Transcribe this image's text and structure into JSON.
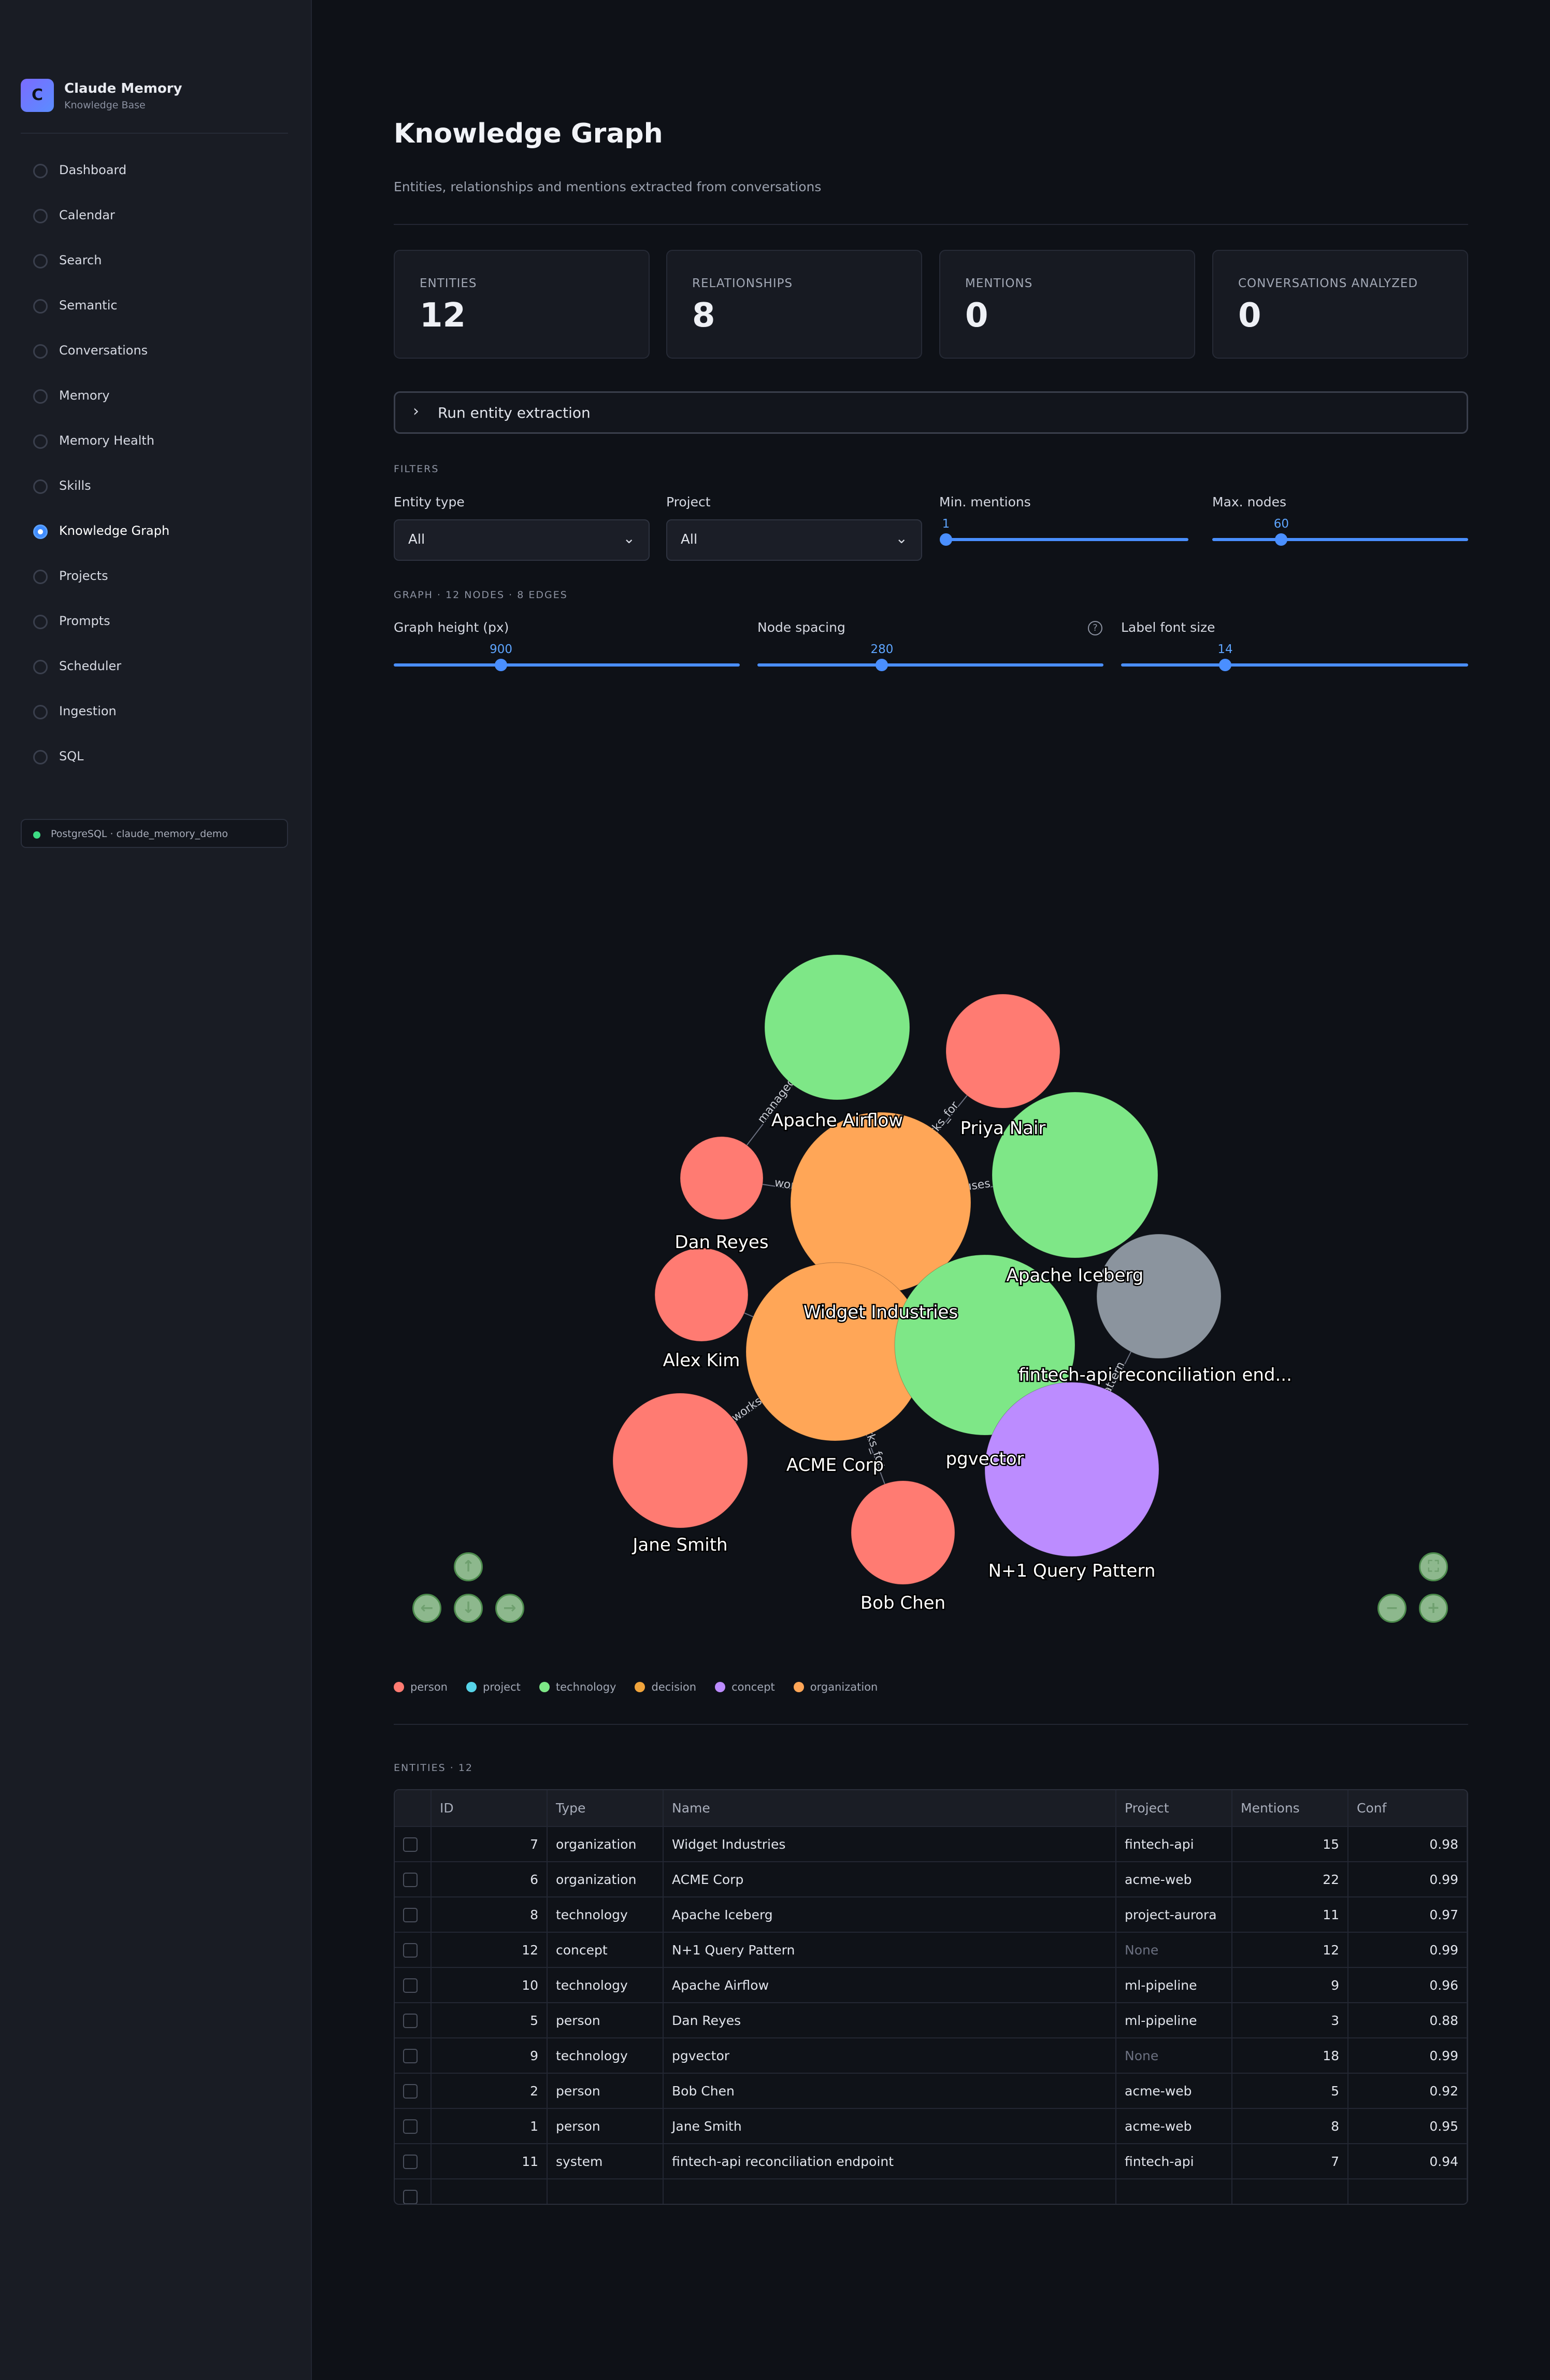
{
  "brand": {
    "logo_letter": "C",
    "title": "Claude Memory",
    "subtitle": "Knowledge Base"
  },
  "sidebar": {
    "items": [
      {
        "label": "Dashboard",
        "active": false
      },
      {
        "label": "Calendar",
        "active": false
      },
      {
        "label": "Search",
        "active": false
      },
      {
        "label": "Semantic",
        "active": false
      },
      {
        "label": "Conversations",
        "active": false
      },
      {
        "label": "Memory",
        "active": false
      },
      {
        "label": "Memory Health",
        "active": false
      },
      {
        "label": "Skills",
        "active": false
      },
      {
        "label": "Knowledge Graph",
        "active": true
      },
      {
        "label": "Projects",
        "active": false
      },
      {
        "label": "Prompts",
        "active": false
      },
      {
        "label": "Scheduler",
        "active": false
      },
      {
        "label": "Ingestion",
        "active": false
      },
      {
        "label": "SQL",
        "active": false
      }
    ],
    "db_status": "PostgreSQL · claude_memory_demo"
  },
  "page": {
    "title": "Knowledge Graph",
    "subtitle": "Entities, relationships and mentions extracted from conversations"
  },
  "stats": [
    {
      "label": "ENTITIES",
      "value": "12"
    },
    {
      "label": "RELATIONSHIPS",
      "value": "8"
    },
    {
      "label": "MENTIONS",
      "value": "0"
    },
    {
      "label": "CONVERSATIONS ANALYZED",
      "value": "0"
    }
  ],
  "extraction": {
    "label": "Run entity extraction"
  },
  "filters": {
    "caption": "FILTERS",
    "entity_type": {
      "label": "Entity type",
      "value": "All"
    },
    "project": {
      "label": "Project",
      "value": "All"
    },
    "min_mentions": {
      "label": "Min. mentions",
      "value": 1,
      "display": "1",
      "fraction": 0.0
    },
    "max_nodes": {
      "label": "Max. nodes",
      "value": 60,
      "display": "60",
      "fraction": 0.27
    }
  },
  "graph_controls": {
    "caption": "GRAPH · 12 NODES · 8 EDGES",
    "height": {
      "label": "Graph height (px)",
      "value": 900,
      "display": "900",
      "fraction": 0.31
    },
    "spacing": {
      "label": "Node spacing",
      "value": 280,
      "display": "280",
      "fraction": 0.36
    },
    "label_font": {
      "label": "Label font size",
      "value": 14,
      "display": "14",
      "fraction": 0.3
    }
  },
  "colors": {
    "person": "#ff7b72",
    "project": "#56d4e8",
    "technology": "#7ee787",
    "decision": "#f0a43c",
    "concept": "#bc8cff",
    "organization": "#ffa657",
    "system": "#8b949e",
    "accent": "#4a8fff"
  },
  "graph": {
    "nodes": [
      {
        "id": "airflow",
        "label": "Apache Airflow",
        "type": "technology"
      },
      {
        "id": "priya",
        "label": "Priya Nair",
        "type": "person"
      },
      {
        "id": "dan",
        "label": "Dan Reyes",
        "type": "person"
      },
      {
        "id": "widget",
        "label": "Widget Industries",
        "type": "organization"
      },
      {
        "id": "iceberg",
        "label": "Apache Iceberg",
        "type": "technology"
      },
      {
        "id": "alex",
        "label": "Alex Kim",
        "type": "person"
      },
      {
        "id": "fintech",
        "label": "fintech-api reconciliation end...",
        "type": "system"
      },
      {
        "id": "acme",
        "label": "ACME Corp",
        "type": "organization"
      },
      {
        "id": "pgvector",
        "label": "pgvector",
        "type": "technology"
      },
      {
        "id": "jane",
        "label": "Jane Smith",
        "type": "person"
      },
      {
        "id": "nplus1",
        "label": "N+1 Query Pattern",
        "type": "concept"
      },
      {
        "id": "bob",
        "label": "Bob Chen",
        "type": "person"
      }
    ],
    "edges": [
      {
        "from": "dan",
        "to": "airflow",
        "label": "managed"
      },
      {
        "from": "priya",
        "to": "widget",
        "label": "works_for"
      },
      {
        "from": "dan",
        "to": "widget",
        "label": "works_for"
      },
      {
        "from": "alex",
        "to": "acme",
        "label": ""
      },
      {
        "from": "jane",
        "to": "acme",
        "label": "works_for"
      },
      {
        "from": "bob",
        "to": "acme",
        "label": "works_for"
      },
      {
        "from": "widget",
        "to": "iceberg",
        "label": "uses"
      },
      {
        "from": "fintech",
        "to": "nplus1",
        "label": "pattern"
      }
    ]
  },
  "legend": [
    {
      "label": "person",
      "color": "#ff7b72"
    },
    {
      "label": "project",
      "color": "#56d4e8"
    },
    {
      "label": "technology",
      "color": "#7ee787"
    },
    {
      "label": "decision",
      "color": "#f0a43c"
    },
    {
      "label": "concept",
      "color": "#bc8cff"
    },
    {
      "label": "organization",
      "color": "#ffa657"
    }
  ],
  "entities": {
    "caption": "ENTITIES · 12",
    "columns": [
      "ID",
      "Type",
      "Name",
      "Project",
      "Mentions",
      "Conf"
    ],
    "rows": [
      {
        "id": "7",
        "type": "organization",
        "name": "Widget Industries",
        "project": "fintech-api",
        "mentions": "15",
        "conf": "0.98"
      },
      {
        "id": "6",
        "type": "organization",
        "name": "ACME Corp",
        "project": "acme-web",
        "mentions": "22",
        "conf": "0.99"
      },
      {
        "id": "8",
        "type": "technology",
        "name": "Apache Iceberg",
        "project": "project-aurora",
        "mentions": "11",
        "conf": "0.97"
      },
      {
        "id": "12",
        "type": "concept",
        "name": "N+1 Query Pattern",
        "project": "None",
        "mentions": "12",
        "conf": "0.99"
      },
      {
        "id": "10",
        "type": "technology",
        "name": "Apache Airflow",
        "project": "ml-pipeline",
        "mentions": "9",
        "conf": "0.96"
      },
      {
        "id": "5",
        "type": "person",
        "name": "Dan Reyes",
        "project": "ml-pipeline",
        "mentions": "3",
        "conf": "0.88"
      },
      {
        "id": "9",
        "type": "technology",
        "name": "pgvector",
        "project": "None",
        "mentions": "18",
        "conf": "0.99"
      },
      {
        "id": "2",
        "type": "person",
        "name": "Bob Chen",
        "project": "acme-web",
        "mentions": "5",
        "conf": "0.92"
      },
      {
        "id": "1",
        "type": "person",
        "name": "Jane Smith",
        "project": "acme-web",
        "mentions": "8",
        "conf": "0.95"
      },
      {
        "id": "11",
        "type": "system",
        "name": "fintech-api reconciliation endpoint",
        "project": "fintech-api",
        "mentions": "7",
        "conf": "0.94"
      }
    ]
  }
}
